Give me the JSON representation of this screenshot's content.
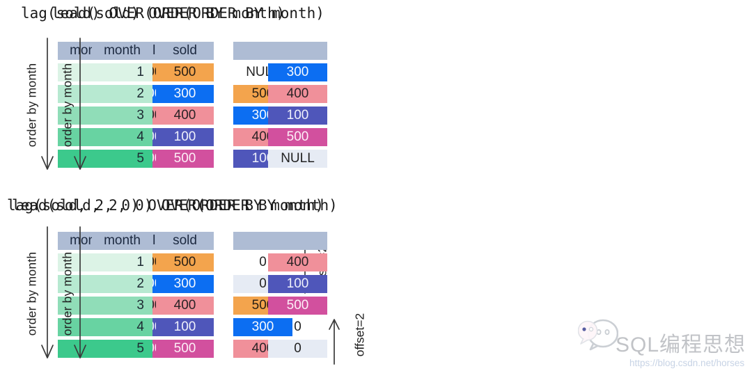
{
  "page": {
    "background": "#ffffff"
  },
  "panels": [
    {
      "title": "lag(sold) OVER(ORDER BY month)",
      "order_label": "order by month",
      "columns": [
        "month",
        "sold"
      ],
      "rows": [
        {
          "month": "1",
          "sold": "500",
          "sold_color": "orange"
        },
        {
          "month": "2",
          "sold": "300",
          "sold_color": "blue"
        },
        {
          "month": "3",
          "sold": "400",
          "sold_color": "salmon"
        },
        {
          "month": "4",
          "sold": "100",
          "sold_color": "indigo"
        },
        {
          "month": "5",
          "sold": "500",
          "sold_color": "magenta"
        }
      ],
      "results": [
        {
          "value": "NULL",
          "color": "plain"
        },
        {
          "value": "500",
          "color": "orange"
        },
        {
          "value": "300",
          "color": "blue"
        },
        {
          "value": "400",
          "color": "salmon"
        },
        {
          "value": "100",
          "color": "indigo"
        }
      ],
      "offset_note": null
    },
    {
      "title": "lead(sold) OVER(ORDER BY month)",
      "order_label": "order by month",
      "columns": [
        "month",
        "sold"
      ],
      "rows": [
        {
          "month": "1",
          "sold": "500",
          "sold_color": "orange"
        },
        {
          "month": "2",
          "sold": "300",
          "sold_color": "blue"
        },
        {
          "month": "3",
          "sold": "400",
          "sold_color": "salmon"
        },
        {
          "month": "4",
          "sold": "100",
          "sold_color": "indigo"
        },
        {
          "month": "5",
          "sold": "500",
          "sold_color": "magenta"
        }
      ],
      "results": [
        {
          "value": "300",
          "color": "blue"
        },
        {
          "value": "400",
          "color": "salmon"
        },
        {
          "value": "100",
          "color": "indigo"
        },
        {
          "value": "500",
          "color": "magenta"
        },
        {
          "value": "NULL",
          "color": "pale"
        }
      ],
      "offset_note": null
    },
    {
      "title": "lag(sold, 2, 0) OVER(ORDER BY month)",
      "order_label": "order by month",
      "columns": [
        "month",
        "sold"
      ],
      "rows": [
        {
          "month": "1",
          "sold": "500",
          "sold_color": "orange"
        },
        {
          "month": "2",
          "sold": "300",
          "sold_color": "blue"
        },
        {
          "month": "3",
          "sold": "400",
          "sold_color": "salmon"
        },
        {
          "month": "4",
          "sold": "100",
          "sold_color": "indigo"
        },
        {
          "month": "5",
          "sold": "500",
          "sold_color": "magenta"
        }
      ],
      "results": [
        {
          "value": "0",
          "color": "plain"
        },
        {
          "value": "0",
          "color": "pale"
        },
        {
          "value": "500",
          "color": "orange"
        },
        {
          "value": "300",
          "color": "blue"
        },
        {
          "value": "400",
          "color": "salmon"
        }
      ],
      "offset_note": {
        "text": "offset=2",
        "direction": "down"
      }
    },
    {
      "title": "lead(sold, 2, 0) OVER(ORDER BY month)",
      "order_label": "order by month",
      "columns": [
        "month",
        "sold"
      ],
      "rows": [
        {
          "month": "1",
          "sold": "500",
          "sold_color": "orange"
        },
        {
          "month": "2",
          "sold": "300",
          "sold_color": "blue"
        },
        {
          "month": "3",
          "sold": "400",
          "sold_color": "salmon"
        },
        {
          "month": "4",
          "sold": "100",
          "sold_color": "indigo"
        },
        {
          "month": "5",
          "sold": "500",
          "sold_color": "magenta"
        }
      ],
      "results": [
        {
          "value": "400",
          "color": "salmon"
        },
        {
          "value": "100",
          "color": "indigo"
        },
        {
          "value": "500",
          "color": "magenta"
        },
        {
          "value": "0",
          "color": "plain"
        },
        {
          "value": "0",
          "color": "pale"
        }
      ],
      "offset_note": {
        "text": "offset=2",
        "direction": "up"
      }
    }
  ],
  "colors": {
    "header": {
      "bg": "#aebcd4",
      "fg": "#1c2940"
    },
    "orange": {
      "bg": "#f3a44d",
      "fg": "#2a2015"
    },
    "blue": {
      "bg": "#0c6ef2",
      "fg": "#f5f9ff"
    },
    "salmon": {
      "bg": "#f0909a",
      "fg": "#2b2326"
    },
    "indigo": {
      "bg": "#4f56ba",
      "fg": "#eef0fb"
    },
    "magenta": {
      "bg": "#d2509e",
      "fg": "#fdeff7"
    },
    "plain": {
      "bg": "transparent",
      "fg": "#222222"
    },
    "pale": {
      "bg": "#e6ebf4",
      "fg": "#222222"
    },
    "month_fg": "#1d2a33",
    "month_shades": [
      "#dcf3e6",
      "#b7e9d1",
      "#90ddb8",
      "#68d3a2",
      "#3cc98c"
    ]
  },
  "watermark": {
    "icon": "wechat-icon",
    "brand": "SQL编程思想",
    "url": "https://blog.csdn.net/horses"
  }
}
